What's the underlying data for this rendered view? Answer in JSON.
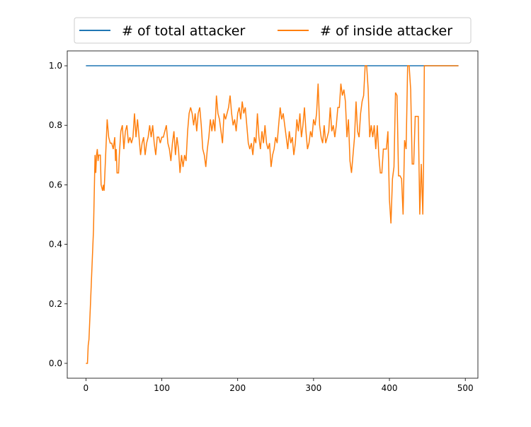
{
  "chart_data": {
    "type": "line",
    "xlim": [
      -24.6,
      516.6
    ],
    "xticks": [
      0,
      100,
      200,
      300,
      400,
      500
    ],
    "ylim": [
      -0.05,
      1.05
    ],
    "yticks": [
      {
        "value": 0,
        "label": "0.0"
      },
      0.2,
      0.4,
      0.6,
      0.8,
      {
        "value": 1,
        "label": "1.0"
      }
    ],
    "legend": "upper center",
    "series": [
      {
        "name": "# of total attacker",
        "color": "#1f77b4",
        "x": [
          0,
          491
        ],
        "values": [
          1,
          1
        ]
      },
      {
        "name": "# of inside attacker",
        "color": "#ff7f0e",
        "x": [
          0,
          2,
          3,
          4,
          6,
          10,
          12,
          13,
          14,
          15,
          16,
          17,
          19,
          20,
          22,
          23,
          24,
          26,
          28,
          30,
          32,
          34,
          36,
          38,
          39,
          40,
          41,
          43,
          44,
          46,
          48,
          50,
          52,
          54,
          56,
          58,
          60,
          62,
          64,
          66,
          68,
          70,
          72,
          74,
          76,
          78,
          80,
          82,
          84,
          86,
          88,
          90,
          92,
          94,
          96,
          98,
          100,
          102,
          104,
          106,
          108,
          110,
          112,
          114,
          116,
          118,
          120,
          122,
          124,
          126,
          128,
          130,
          132,
          134,
          136,
          138,
          140,
          142,
          144,
          146,
          148,
          150,
          152,
          154,
          156,
          158,
          160,
          162,
          164,
          166,
          168,
          170,
          172,
          174,
          176,
          178,
          180,
          182,
          184,
          186,
          188,
          190,
          192,
          194,
          196,
          198,
          200,
          202,
          204,
          206,
          208,
          210,
          212,
          214,
          216,
          218,
          220,
          222,
          224,
          226,
          228,
          230,
          232,
          234,
          236,
          238,
          240,
          242,
          244,
          246,
          248,
          250,
          252,
          254,
          256,
          258,
          260,
          262,
          264,
          266,
          268,
          270,
          272,
          274,
          276,
          278,
          280,
          282,
          284,
          286,
          288,
          290,
          292,
          294,
          296,
          298,
          300,
          302,
          304,
          306,
          308,
          310,
          312,
          314,
          316,
          318,
          320,
          322,
          324,
          326,
          328,
          330,
          332,
          334,
          336,
          338,
          340,
          342,
          344,
          346,
          348,
          350,
          352,
          354,
          356,
          358,
          360,
          362,
          364,
          366,
          368,
          370,
          372,
          374,
          376,
          378,
          380,
          382,
          384,
          386,
          388,
          390,
          392,
          394,
          396,
          398,
          400,
          402,
          404,
          406,
          408,
          410,
          412,
          414,
          416,
          418,
          420,
          422,
          424,
          426,
          428,
          430,
          432,
          434,
          436,
          438,
          440,
          442,
          444,
          445,
          446,
          450,
          491
        ],
        "values": [
          0,
          0,
          0.06,
          0.08,
          0.2,
          0.45,
          0.7,
          0.64,
          0.7,
          0.72,
          0.68,
          0.7,
          0.7,
          0.6,
          0.58,
          0.6,
          0.58,
          0.7,
          0.82,
          0.76,
          0.74,
          0.74,
          0.72,
          0.76,
          0.68,
          0.72,
          0.64,
          0.64,
          0.7,
          0.78,
          0.8,
          0.72,
          0.78,
          0.8,
          0.74,
          0.76,
          0.74,
          0.76,
          0.84,
          0.76,
          0.82,
          0.76,
          0.7,
          0.74,
          0.76,
          0.7,
          0.74,
          0.76,
          0.8,
          0.76,
          0.8,
          0.74,
          0.7,
          0.76,
          0.76,
          0.74,
          0.76,
          0.76,
          0.78,
          0.8,
          0.74,
          0.72,
          0.68,
          0.74,
          0.78,
          0.7,
          0.76,
          0.72,
          0.64,
          0.7,
          0.66,
          0.7,
          0.68,
          0.78,
          0.84,
          0.86,
          0.84,
          0.8,
          0.84,
          0.78,
          0.84,
          0.86,
          0.8,
          0.72,
          0.7,
          0.66,
          0.72,
          0.76,
          0.82,
          0.78,
          0.82,
          0.78,
          0.9,
          0.84,
          0.82,
          0.78,
          0.74,
          0.84,
          0.82,
          0.84,
          0.86,
          0.9,
          0.84,
          0.8,
          0.82,
          0.78,
          0.84,
          0.86,
          0.82,
          0.88,
          0.84,
          0.86,
          0.8,
          0.74,
          0.72,
          0.74,
          0.7,
          0.76,
          0.74,
          0.84,
          0.76,
          0.72,
          0.78,
          0.74,
          0.8,
          0.74,
          0.72,
          0.74,
          0.66,
          0.7,
          0.72,
          0.76,
          0.74,
          0.8,
          0.86,
          0.82,
          0.84,
          0.8,
          0.76,
          0.72,
          0.78,
          0.74,
          0.76,
          0.7,
          0.74,
          0.82,
          0.78,
          0.84,
          0.76,
          0.8,
          0.86,
          0.78,
          0.72,
          0.74,
          0.78,
          0.76,
          0.82,
          0.8,
          0.84,
          0.94,
          0.8,
          0.76,
          0.74,
          0.8,
          0.74,
          0.76,
          0.78,
          0.86,
          0.78,
          0.8,
          0.76,
          0.8,
          0.86,
          0.86,
          0.94,
          0.9,
          0.92,
          0.88,
          0.76,
          0.82,
          0.68,
          0.64,
          0.7,
          0.76,
          0.88,
          0.78,
          0.76,
          0.84,
          0.88,
          0.9,
          1,
          1,
          0.92,
          0.76,
          0.8,
          0.76,
          0.8,
          0.72,
          0.8,
          0.7,
          0.64,
          0.64,
          0.72,
          0.72,
          0.72,
          0.78,
          0.55,
          0.47,
          0.62,
          0.66,
          0.91,
          0.9,
          0.63,
          0.63,
          0.62,
          0.5,
          0.75,
          0.72,
          1,
          1,
          0.92,
          0.67,
          0.67,
          0.83,
          0.83,
          0.83,
          0.5,
          0.67,
          0.5,
          0.67,
          1,
          1,
          1
        ]
      }
    ]
  }
}
